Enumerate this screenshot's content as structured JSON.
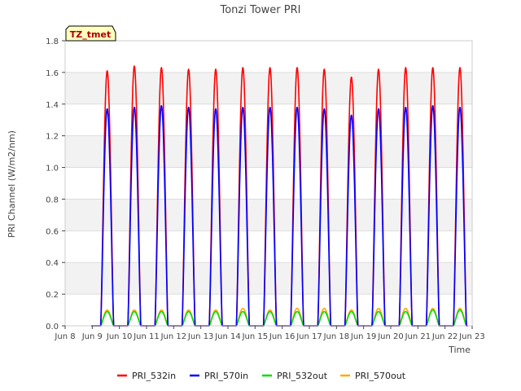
{
  "chart_data": {
    "type": "line",
    "title": "Tonzi Tower PRI",
    "xlabel": "Time",
    "ylabel": "PRI Channel (W/m2/nm)",
    "site_badge": "TZ_tmet",
    "xlim": [
      8,
      23
    ],
    "ylim": [
      0,
      1.8
    ],
    "x_ticks": [
      {
        "v": 8,
        "label": "Jun 8"
      },
      {
        "v": 9,
        "label": "Jun 9"
      },
      {
        "v": 10,
        "label": "Jun 10"
      },
      {
        "v": 11,
        "label": "Jun 11"
      },
      {
        "v": 12,
        "label": "Jun 12"
      },
      {
        "v": 13,
        "label": "Jun 13"
      },
      {
        "v": 14,
        "label": "Jun 14"
      },
      {
        "v": 15,
        "label": "Jun 15"
      },
      {
        "v": 16,
        "label": "Jun 16"
      },
      {
        "v": 17,
        "label": "Jun 17"
      },
      {
        "v": 18,
        "label": "Jun 18"
      },
      {
        "v": 19,
        "label": "Jun 19"
      },
      {
        "v": 20,
        "label": "Jun 20"
      },
      {
        "v": 21,
        "label": "Jun 21"
      },
      {
        "v": 22,
        "label": "Jun 22"
      },
      {
        "v": 23,
        "label": "Jun 23"
      }
    ],
    "y_ticks": [
      {
        "v": 0.0,
        "label": "0.0"
      },
      {
        "v": 0.2,
        "label": "0.2"
      },
      {
        "v": 0.4,
        "label": "0.4"
      },
      {
        "v": 0.6,
        "label": "0.6"
      },
      {
        "v": 0.8,
        "label": "0.8"
      },
      {
        "v": 1.0,
        "label": "1.0"
      },
      {
        "v": 1.2,
        "label": "1.2"
      },
      {
        "v": 1.4,
        "label": "1.4"
      },
      {
        "v": 1.6,
        "label": "1.6"
      },
      {
        "v": 1.8,
        "label": "1.8"
      }
    ],
    "day_model": {
      "days": [
        9,
        10,
        11,
        12,
        13,
        14,
        15,
        16,
        17,
        18,
        19,
        20,
        21,
        22
      ],
      "peak_offset": 0.55,
      "half_width": 0.24
    },
    "series": [
      {
        "name": "PRI_532in",
        "color": "#ff0000",
        "peaks": [
          1.61,
          1.64,
          1.63,
          1.62,
          1.62,
          1.63,
          1.63,
          1.63,
          1.62,
          1.57,
          1.62,
          1.63,
          1.63,
          1.63
        ]
      },
      {
        "name": "PRI_570in",
        "color": "#0000ff",
        "peaks": [
          1.37,
          1.38,
          1.39,
          1.38,
          1.37,
          1.38,
          1.38,
          1.38,
          1.37,
          1.33,
          1.37,
          1.38,
          1.39,
          1.38
        ]
      },
      {
        "name": "PRI_532out",
        "color": "#00dd00",
        "peaks": [
          0.09,
          0.09,
          0.09,
          0.09,
          0.09,
          0.09,
          0.09,
          0.09,
          0.09,
          0.09,
          0.09,
          0.09,
          0.1,
          0.1
        ]
      },
      {
        "name": "PRI_570out",
        "color": "#ffaa00",
        "peaks": [
          0.1,
          0.1,
          0.1,
          0.1,
          0.1,
          0.11,
          0.1,
          0.11,
          0.11,
          0.1,
          0.11,
          0.11,
          0.11,
          0.11
        ]
      }
    ]
  }
}
